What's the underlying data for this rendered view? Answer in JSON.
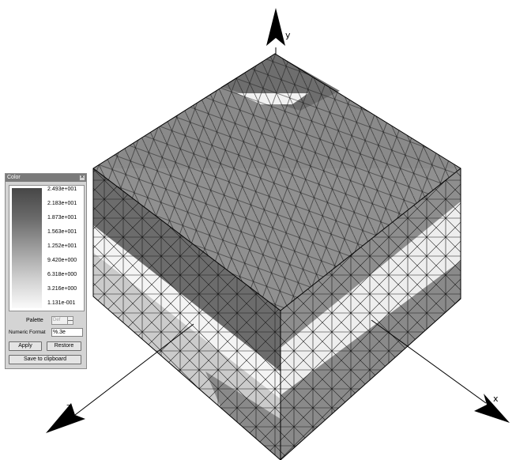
{
  "color_dialog": {
    "title": "Color",
    "close_glyph": "×",
    "legend_labels": [
      "2.493e+001",
      "2.183e+001",
      "1.873e+001",
      "1.563e+001",
      "1.252e+001",
      "9.420e+000",
      "6.318e+000",
      "3.216e+000",
      "1.131e-001"
    ],
    "palette_label": "Palette",
    "palette_value": "Def",
    "numeric_format_label": "Numeric Format",
    "numeric_format_value": "%.3e",
    "apply_label": "Apply",
    "restore_label": "Restore",
    "save_label": "Save to clipboard"
  },
  "axes": {
    "x": "x",
    "y": "y",
    "z": "z"
  },
  "colors": {
    "scale_high": "#474747",
    "scale_low": "#fafafa",
    "mesh_edge": "#1a1a1a"
  }
}
